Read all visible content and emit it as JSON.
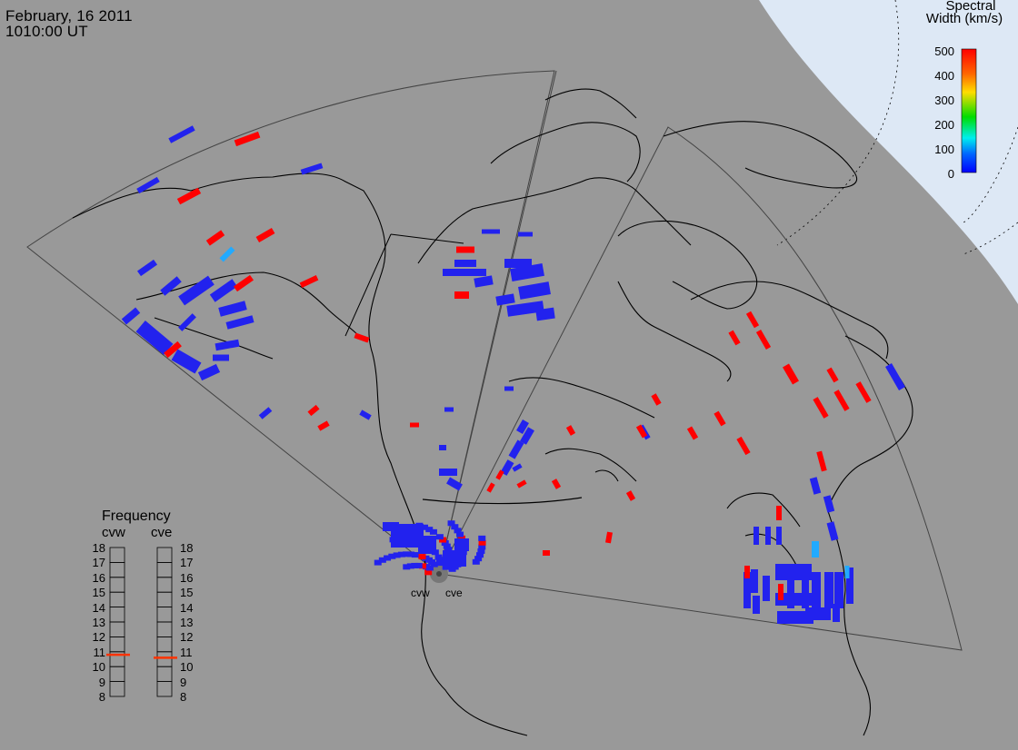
{
  "header": {
    "date": "February, 16 2011",
    "time": "1010:00 UT"
  },
  "colorbar": {
    "title_line1": "Spectral",
    "title_line2": "Width (km/s)",
    "ticks": [
      "500",
      "400",
      "300",
      "200",
      "100",
      "0"
    ],
    "colors": [
      "#ff0000",
      "#ff8000",
      "#ffff00",
      "#00dd00",
      "#00ffff",
      "#0044ff",
      "#0000ff"
    ]
  },
  "frequency": {
    "title": "Frequency",
    "radars": [
      "cvw",
      "cve"
    ],
    "scale": [
      "18",
      "17",
      "16",
      "15",
      "14",
      "13",
      "12",
      "11",
      "10",
      "9",
      "8"
    ],
    "values_mhz": [
      10.8,
      10.6
    ],
    "marker_color": "#ff3300"
  },
  "sites": {
    "west": "cvw",
    "east": "cve"
  },
  "colors": {
    "background": "#999999",
    "sunlit": "#dde8f5",
    "low_width": "#2222ee",
    "high_width": "#ff0000",
    "mid_width": "#22aaff"
  }
}
